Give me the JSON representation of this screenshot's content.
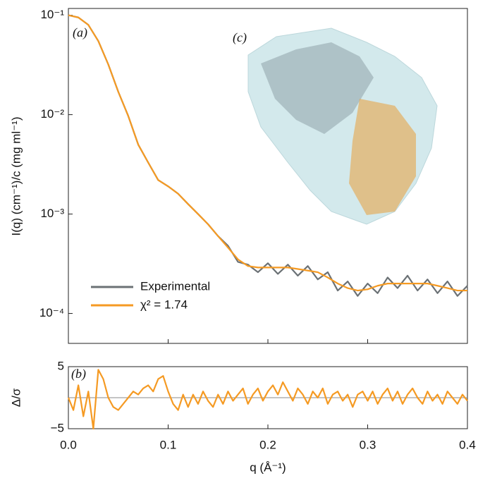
{
  "chart_data": [
    {
      "type": "line",
      "ylabel": "I(q) (cm⁻¹)/c (mg ml⁻¹)",
      "panel_label": "(a)",
      "inset_label": "(c)",
      "log_scale": true,
      "legend": "lower left",
      "xlim": [
        0,
        0.4
      ],
      "ylim": [
        5e-05,
        0.117
      ],
      "yticks": [
        {
          "value": 0.0001,
          "label": "10⁻⁴"
        },
        {
          "value": 0.001,
          "label": "10⁻³"
        },
        {
          "value": 0.01,
          "label": "10⁻²"
        },
        {
          "value": 0.1,
          "label": "10⁻¹"
        }
      ],
      "x": [
        0,
        0.01,
        0.02,
        0.03,
        0.04,
        0.05,
        0.06,
        0.07,
        0.08,
        0.09,
        0.1,
        0.11,
        0.12,
        0.13,
        0.14,
        0.15,
        0.16,
        0.17,
        0.18,
        0.19,
        0.2,
        0.21,
        0.22,
        0.23,
        0.24,
        0.25,
        0.26,
        0.27,
        0.28,
        0.29,
        0.3,
        0.31,
        0.32,
        0.33,
        0.34,
        0.35,
        0.36,
        0.37,
        0.38,
        0.39,
        0.4
      ],
      "series": [
        {
          "name": "Experimental",
          "color": "#6b7175",
          "values": [
            0.1,
            0.095,
            0.08,
            0.055,
            0.032,
            0.017,
            0.0097,
            0.005,
            0.0033,
            0.0022,
            0.0019,
            0.0016,
            0.00126,
            0.001,
            0.00079,
            0.0006,
            0.00048,
            0.00033,
            0.00031,
            0.00026,
            0.00032,
            0.00025,
            0.00031,
            0.00024,
            0.0003,
            0.00022,
            0.00026,
            0.00017,
            0.00021,
            0.00015,
            0.0002,
            0.00016,
            0.00023,
            0.00018,
            0.00024,
            0.00017,
            0.00022,
            0.00016,
            0.00021,
            0.00015,
            0.00019
          ]
        },
        {
          "name": "χ² = 1.74",
          "color": "#f59a23",
          "values": [
            0.1,
            0.095,
            0.08,
            0.055,
            0.032,
            0.017,
            0.0097,
            0.005,
            0.0033,
            0.0022,
            0.0019,
            0.0016,
            0.00126,
            0.001,
            0.00079,
            0.0006,
            0.00046,
            0.00035,
            0.0003,
            0.00029,
            0.00029,
            0.00029,
            0.00029,
            0.00028,
            0.00027,
            0.00026,
            0.00023,
            0.0002,
            0.00018,
            0.00017,
            0.000175,
            0.00019,
            0.0002,
            0.0002,
            0.0002,
            0.0002,
            0.0002,
            0.00019,
            0.00018,
            0.00017,
            0.00017
          ]
        }
      ]
    },
    {
      "type": "line",
      "ylabel": "Δ/σ",
      "xlabel": "q (Å⁻¹)",
      "panel_label": "(b)",
      "reference_line": 0,
      "xlim": [
        0,
        0.4
      ],
      "ylim": [
        -5,
        5
      ],
      "xticks": [
        {
          "value": 0,
          "label": "0.0"
        },
        0.1,
        0.2,
        0.3,
        0.4
      ],
      "yticks": [
        {
          "value": -5,
          "label": "−5"
        },
        5
      ],
      "x": [
        0,
        0.005,
        0.01,
        0.015,
        0.02,
        0.025,
        0.03,
        0.035,
        0.04,
        0.045,
        0.05,
        0.055,
        0.06,
        0.065,
        0.07,
        0.075,
        0.08,
        0.085,
        0.09,
        0.095,
        0.1,
        0.105,
        0.11,
        0.115,
        0.12,
        0.125,
        0.13,
        0.135,
        0.14,
        0.145,
        0.15,
        0.155,
        0.16,
        0.165,
        0.17,
        0.175,
        0.18,
        0.185,
        0.19,
        0.195,
        0.2,
        0.205,
        0.21,
        0.215,
        0.22,
        0.225,
        0.23,
        0.235,
        0.24,
        0.245,
        0.25,
        0.255,
        0.26,
        0.265,
        0.27,
        0.275,
        0.28,
        0.285,
        0.29,
        0.295,
        0.3,
        0.305,
        0.31,
        0.315,
        0.32,
        0.325,
        0.33,
        0.335,
        0.34,
        0.345,
        0.35,
        0.355,
        0.36,
        0.365,
        0.37,
        0.375,
        0.38,
        0.385,
        0.39,
        0.395,
        0.4
      ],
      "series": [
        {
          "color": "#f59a23",
          "values": [
            0,
            -2,
            2,
            -3,
            1,
            -5,
            4.5,
            3,
            0,
            -1.5,
            -2,
            -1,
            0,
            1,
            0.5,
            1.5,
            2,
            1,
            3,
            3.5,
            1,
            -1,
            -2,
            0.5,
            -1.5,
            0.5,
            -1,
            1,
            -0.5,
            -1.5,
            0.5,
            -1,
            1,
            -0.5,
            0.5,
            1.5,
            -1,
            0.5,
            1.5,
            -0.5,
            1,
            2,
            0.5,
            2.5,
            1,
            -0.5,
            1.5,
            0.5,
            -1,
            1,
            0,
            1.5,
            -1,
            0.5,
            1,
            -0.5,
            0.5,
            -1.5,
            0.5,
            1,
            -0.5,
            1,
            -1,
            0.5,
            1.5,
            -0.5,
            1,
            -1,
            0.5,
            1.5,
            0,
            -1,
            1,
            -0.5,
            0.5,
            -1,
            1,
            0,
            -1,
            0.5,
            -0.5
          ]
        }
      ]
    }
  ]
}
